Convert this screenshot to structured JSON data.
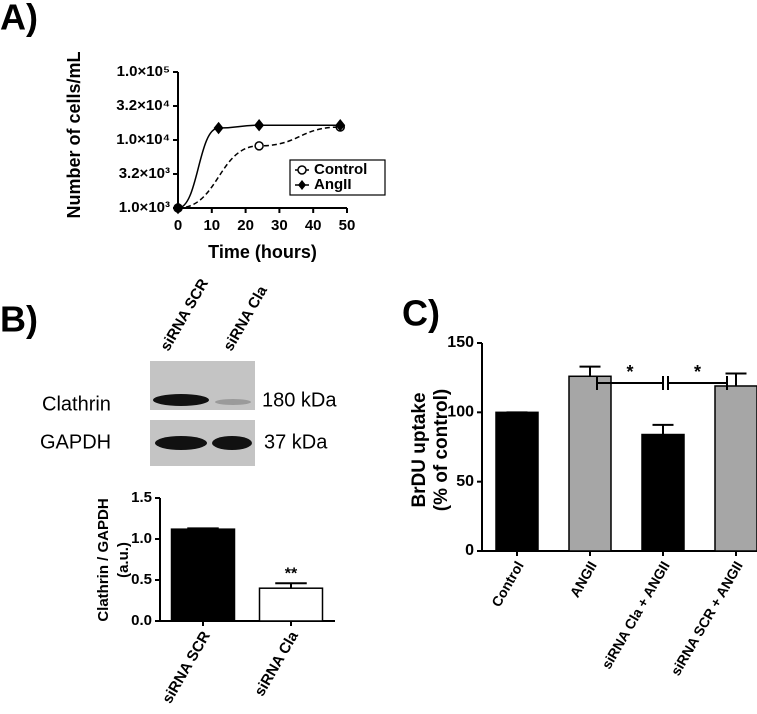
{
  "chart_data": [
    {
      "panel": "A)",
      "type": "line",
      "xlabel": "Time (hours)",
      "ylabel": "Number of cells/mL",
      "xlim": [
        0,
        50
      ],
      "xticks": [
        0,
        10,
        20,
        30,
        40,
        50
      ],
      "ylim": [
        1000,
        100000
      ],
      "ylog": true,
      "yticks": [
        {
          "value": 1000,
          "label": "1.0×10³"
        },
        {
          "value": 3162,
          "label": "3.2×10³"
        },
        {
          "value": 10000,
          "label": "1.0×10⁴"
        },
        {
          "value": 31623,
          "label": "3.2×10⁴"
        },
        {
          "value": 100000,
          "label": "1.0×10⁵"
        }
      ],
      "legend": "lower right",
      "series": [
        {
          "name": "Control",
          "color": "#000000",
          "marker": "open-circle",
          "dashed": true,
          "x": [
            0,
            24,
            48
          ],
          "values": [
            1000,
            8200,
            15500
          ]
        },
        {
          "name": "AngII",
          "color": "#000000",
          "marker": "diamond",
          "dashed": false,
          "x": [
            0,
            12,
            24,
            48
          ],
          "values": [
            1000,
            15000,
            16500,
            16500
          ]
        }
      ]
    },
    {
      "panel": "B)",
      "type": "bar",
      "blot": {
        "lanes": [
          "siRNA SCR",
          "siRNA Cla"
        ],
        "rows": [
          {
            "protein": "Clathrin",
            "size": "180 kDa"
          },
          {
            "protein": "GAPDH",
            "size": "37 kDa"
          }
        ]
      },
      "ylabel": [
        "Clathrin / GAPDH",
        "(a.u.)"
      ],
      "categories": [
        "siRNA SCR",
        "siRNA Cla"
      ],
      "values": [
        1.12,
        0.4
      ],
      "errors": [
        0.01,
        0.06
      ],
      "colors": [
        "#000000",
        "#ffffff"
      ],
      "annotations": [
        null,
        "**"
      ],
      "ylim": [
        0,
        1.5
      ],
      "yticks": [
        {
          "value": 0,
          "label": "0.0"
        },
        0.5,
        {
          "value": 1,
          "label": "1.0"
        },
        1.5
      ]
    },
    {
      "panel": "C)",
      "type": "bar",
      "ylabel": [
        "BrDU uptake",
        "(% of control)"
      ],
      "categories": [
        "Control",
        "ANGII",
        "siRNA Cla + ANGII",
        "siRNA SCR  + ANGII"
      ],
      "values": [
        100,
        126,
        84,
        119
      ],
      "errors": [
        0,
        7,
        7,
        9
      ],
      "colors": [
        "#000000",
        "#a6a6a6",
        "#000000",
        "#a6a6a6"
      ],
      "brackets": [
        {
          "label": "*",
          "between": [
            1,
            2
          ]
        },
        {
          "label": "*",
          "between": [
            2,
            3
          ]
        }
      ],
      "ylim": [
        0,
        150
      ],
      "yticks": [
        0,
        50,
        100,
        150
      ]
    }
  ]
}
